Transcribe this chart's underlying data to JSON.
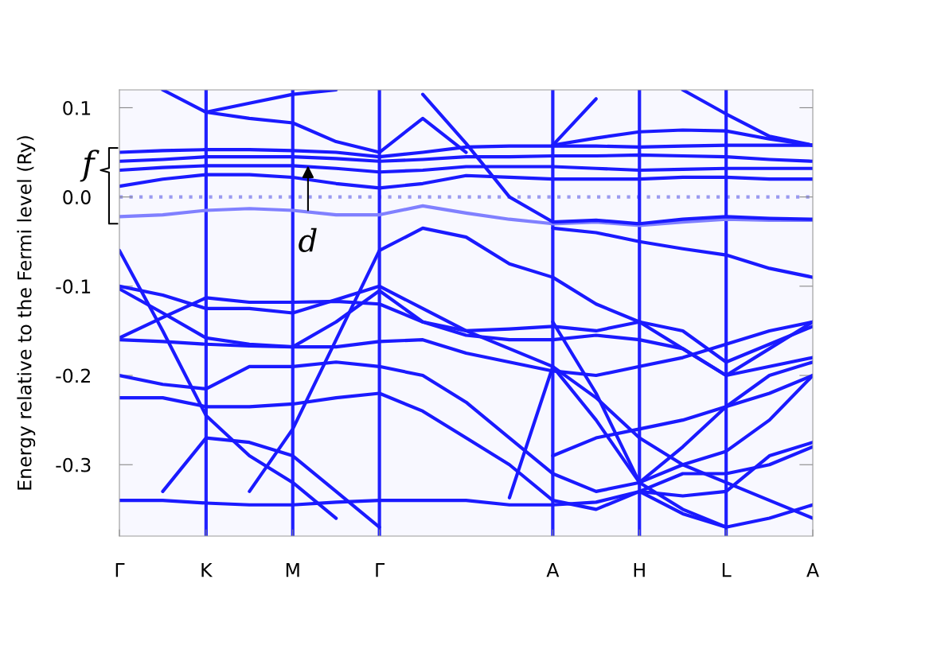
{
  "chart_data": {
    "type": "line",
    "ylabel": "Energy relative to the Fermi level (Ry)",
    "line_style": "solid",
    "categories": [
      "Γ",
      null,
      "K",
      null,
      "M",
      null,
      "Γ",
      null,
      null,
      null,
      "A",
      null,
      "H",
      null,
      "L",
      null,
      "A"
    ],
    "grid": "x",
    "ylim": [
      -0.38,
      0.12
    ],
    "yticks": [
      {
        "value": 0.1,
        "label": "0.1"
      },
      {
        "value": 0,
        "label": "0.0"
      },
      {
        "value": -0.1,
        "label": "-0.1"
      },
      {
        "value": -0.2,
        "label": "-0.2"
      },
      {
        "value": -0.3,
        "label": "-0.3"
      }
    ],
    "series": [
      {
        "color": "#1a1aff",
        "values": [
          0.05,
          0.052,
          0.053,
          0.053,
          0.052,
          0.05,
          0.045,
          0.05,
          0.056,
          0.057,
          0.057,
          0.057,
          0.056,
          0.057,
          0.058,
          0.058,
          0.058
        ]
      },
      {
        "color": "#1a1aff",
        "values": [
          0.04,
          0.042,
          0.045,
          0.045,
          0.045,
          0.043,
          0.04,
          0.042,
          0.045,
          0.045,
          0.046,
          0.046,
          0.047,
          0.046,
          0.045,
          0.042,
          0.04
        ]
      },
      {
        "color": "#1a1aff",
        "values": [
          0.03,
          0.033,
          0.035,
          0.035,
          0.035,
          0.032,
          0.028,
          0.03,
          0.034,
          0.034,
          0.034,
          0.032,
          0.03,
          0.031,
          0.032,
          0.032,
          0.032
        ]
      },
      {
        "color": "#1a1aff",
        "values": [
          0.012,
          0.02,
          0.025,
          0.025,
          0.022,
          0.015,
          0.01,
          0.015,
          0.024,
          0.022,
          0.02,
          0.02,
          0.02,
          0.022,
          0.022,
          0.02,
          0.02
        ]
      },
      {
        "color": "#8080ff",
        "values": [
          -0.022,
          -0.02,
          -0.015,
          -0.013,
          -0.015,
          -0.02,
          -0.02,
          -0.01,
          -0.018,
          -0.025,
          -0.03,
          -0.028,
          -0.032,
          -0.028,
          -0.025,
          -0.026,
          -0.026
        ]
      },
      {
        "color": "#1a1aff",
        "values": [
          null,
          0.12,
          0.095,
          0.088,
          0.083,
          0.062,
          0.05,
          0.088,
          0.05,
          null,
          null,
          null,
          null,
          null,
          null,
          null,
          null
        ]
      },
      {
        "color": "#1a1aff",
        "values": [
          null,
          null,
          0.095,
          0.105,
          0.115,
          0.12,
          null,
          null,
          null,
          null,
          null,
          null,
          null,
          null,
          null,
          null,
          null
        ]
      },
      {
        "color": "#1a1aff",
        "values": [
          null,
          null,
          null,
          null,
          null,
          null,
          null,
          0.115,
          0.06,
          0.0,
          -0.028,
          -0.026,
          -0.03,
          -0.025,
          -0.022,
          -0.024,
          -0.025
        ]
      },
      {
        "color": "#1a1aff",
        "values": [
          null,
          null,
          null,
          null,
          null,
          null,
          null,
          null,
          null,
          null,
          0.058,
          0.11,
          null,
          null,
          null,
          null,
          null
        ]
      },
      {
        "color": "#1a1aff",
        "values": [
          null,
          null,
          null,
          null,
          null,
          null,
          null,
          null,
          null,
          null,
          null,
          null,
          null,
          0.12,
          0.093,
          0.068,
          0.058
        ]
      },
      {
        "color": "#1a1aff",
        "values": [
          null,
          null,
          null,
          null,
          null,
          null,
          null,
          null,
          null,
          null,
          0.058,
          0.066,
          0.073,
          0.075,
          0.074,
          0.065,
          0.058
        ]
      },
      {
        "color": "#1a1aff",
        "values": [
          -0.1,
          -0.11,
          -0.125,
          -0.125,
          -0.13,
          -0.115,
          -0.1,
          -0.125,
          -0.15,
          -0.17,
          -0.19,
          -0.225,
          -0.27,
          -0.3,
          -0.32,
          -0.34,
          -0.36
        ]
      },
      {
        "color": "#1a1aff",
        "values": [
          -0.103,
          -0.13,
          -0.158,
          -0.165,
          -0.168,
          -0.14,
          -0.105,
          -0.14,
          -0.155,
          -0.16,
          -0.16,
          -0.155,
          -0.16,
          -0.17,
          -0.2,
          -0.19,
          -0.18
        ]
      },
      {
        "color": "#1a1aff",
        "values": [
          -0.158,
          -0.135,
          -0.113,
          -0.118,
          -0.118,
          -0.117,
          -0.12,
          -0.14,
          -0.15,
          -0.148,
          -0.145,
          -0.15,
          -0.14,
          -0.15,
          -0.185,
          -0.165,
          -0.145
        ]
      },
      {
        "color": "#1a1aff",
        "values": [
          -0.16,
          -0.162,
          -0.165,
          -0.167,
          -0.168,
          -0.168,
          -0.162,
          -0.16,
          -0.175,
          -0.185,
          -0.195,
          -0.2,
          -0.19,
          -0.18,
          -0.165,
          -0.15,
          -0.14
        ]
      },
      {
        "color": "#1a1aff",
        "values": [
          -0.2,
          -0.21,
          -0.215,
          -0.19,
          -0.19,
          -0.185,
          -0.19,
          -0.2,
          -0.23,
          -0.27,
          -0.31,
          -0.33,
          -0.32,
          -0.3,
          -0.285,
          -0.25,
          -0.2
        ]
      },
      {
        "color": "#1a1aff",
        "values": [
          -0.225,
          -0.225,
          -0.235,
          -0.235,
          -0.232,
          -0.225,
          -0.22,
          -0.24,
          -0.27,
          -0.3,
          -0.34,
          -0.35,
          -0.33,
          -0.31,
          -0.31,
          -0.3,
          -0.28
        ]
      },
      {
        "color": "#1a1aff",
        "values": [
          -0.34,
          -0.34,
          -0.343,
          -0.345,
          -0.345,
          -0.342,
          -0.34,
          -0.34,
          -0.34,
          -0.345,
          -0.345,
          -0.342,
          -0.33,
          -0.355,
          -0.37,
          -0.36,
          -0.345
        ]
      },
      {
        "color": "#1a1aff",
        "values": [
          null,
          -0.33,
          -0.27,
          -0.275,
          -0.29,
          -0.33,
          -0.37,
          null,
          null,
          null,
          null,
          null,
          null,
          null,
          null,
          null,
          null
        ]
      },
      {
        "color": "#1a1aff",
        "values": [
          -0.06,
          -0.15,
          -0.245,
          -0.29,
          -0.32,
          -0.36,
          null,
          null,
          null,
          null,
          null,
          null,
          null,
          null,
          null,
          null,
          null
        ]
      },
      {
        "color": "#1a1aff",
        "values": [
          null,
          null,
          null,
          -0.33,
          -0.26,
          -0.16,
          -0.06,
          -0.035,
          -0.045,
          -0.075,
          -0.09,
          -0.12,
          -0.14,
          -0.17,
          -0.2,
          -0.17,
          -0.14
        ]
      },
      {
        "color": "#1a1aff",
        "values": [
          null,
          null,
          null,
          null,
          null,
          null,
          null,
          null,
          null,
          -0.337,
          -0.19,
          -0.25,
          -0.32,
          -0.35,
          -0.37,
          null,
          null
        ]
      },
      {
        "color": "#1a1aff",
        "values": [
          null,
          null,
          null,
          null,
          null,
          null,
          null,
          null,
          null,
          null,
          -0.14,
          -0.22,
          -0.32,
          -0.28,
          -0.235,
          -0.2,
          -0.185
        ]
      },
      {
        "color": "#1a1aff",
        "values": [
          null,
          null,
          null,
          null,
          null,
          null,
          null,
          null,
          null,
          null,
          -0.035,
          -0.04,
          -0.05,
          -0.058,
          -0.065,
          -0.08,
          -0.09
        ]
      },
      {
        "color": "#1a1aff",
        "values": [
          null,
          null,
          null,
          null,
          null,
          null,
          null,
          null,
          null,
          null,
          -0.29,
          -0.27,
          -0.26,
          -0.25,
          -0.235,
          -0.22,
          -0.2
        ]
      },
      {
        "color": "#1a1aff",
        "values": [
          null,
          null,
          null,
          null,
          null,
          null,
          null,
          null,
          null,
          null,
          null,
          null,
          -0.33,
          -0.335,
          -0.33,
          -0.29,
          -0.275
        ]
      }
    ],
    "ref_lines": [
      {
        "axis": "y",
        "value": 0,
        "color": "#9a9af0",
        "line_style": "dotted"
      }
    ],
    "annotations": [
      "f",
      {
        "text": "d",
        "y": 0.035
      }
    ]
  }
}
